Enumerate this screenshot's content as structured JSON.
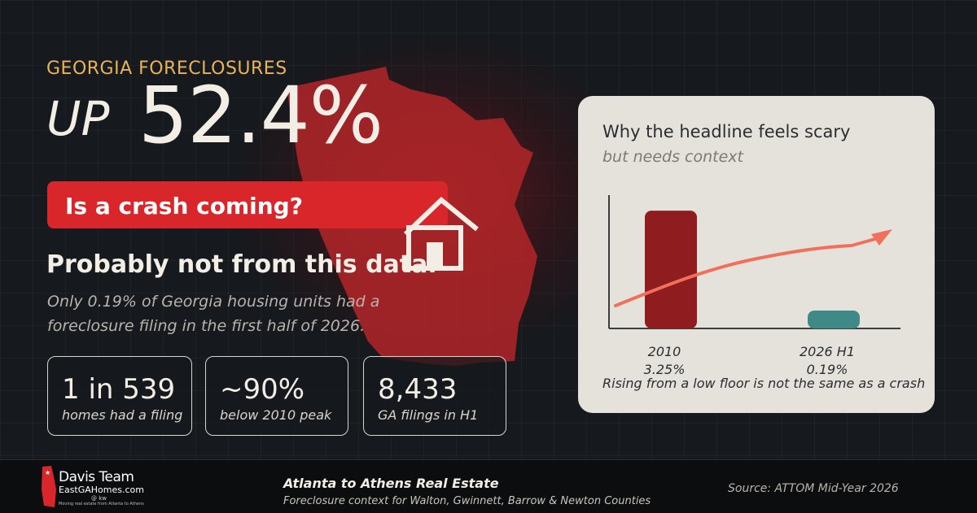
{
  "colors": {
    "background": "#16191d",
    "accent_gold": "#e8b35a",
    "banner_red": "#d8262a",
    "bar_2010": "#8f1d20",
    "bar_2026": "#3f8a86",
    "trend_arrow": "#f0705c",
    "panel": "#e5e2dc"
  },
  "hero": {
    "kicker": "GEORGIA FORECLOSURES",
    "up_word": "UP",
    "percent": "52.4%",
    "banner": "Is a crash coming?",
    "answer": "Probably not from this data.",
    "explanation": "Only 0.19% of Georgia housing units had a foreclosure filing in the first half of 2026."
  },
  "icons": {
    "background_shape": "georgia-state-outline-icon",
    "house": "house-outline-icon"
  },
  "stats": [
    {
      "value": "1 in 539",
      "label": "homes had a filing"
    },
    {
      "value": "~90%",
      "label": "below 2010 peak"
    },
    {
      "value": "8,433",
      "label": "GA filings in H1"
    }
  ],
  "panel": {
    "title": "Why the headline feels scary",
    "subtitle": "but needs context",
    "caption": "Rising from a low floor is not the same as a crash"
  },
  "chart_data": {
    "type": "bar",
    "categories": [
      "2010",
      "2026 H1"
    ],
    "values": [
      3.25,
      0.19
    ],
    "value_labels": [
      "3.25%",
      "0.19%"
    ],
    "title": "",
    "xlabel": "",
    "ylabel": "",
    "ylim": [
      0,
      3.5
    ],
    "grid": false,
    "trend_arrow": "rising"
  },
  "footer": {
    "logo": {
      "name": "Davis Team",
      "site": "EastGAHomes.com",
      "brokerage": "@ kw",
      "tagline": "Moving real estate from Atlanta to Athens"
    },
    "title": "Atlanta to Athens Real Estate",
    "subtitle": "Foreclosure context for Walton, Gwinnett, Barrow & Newton Counties",
    "source": "Source: ATTOM Mid-Year 2026"
  }
}
